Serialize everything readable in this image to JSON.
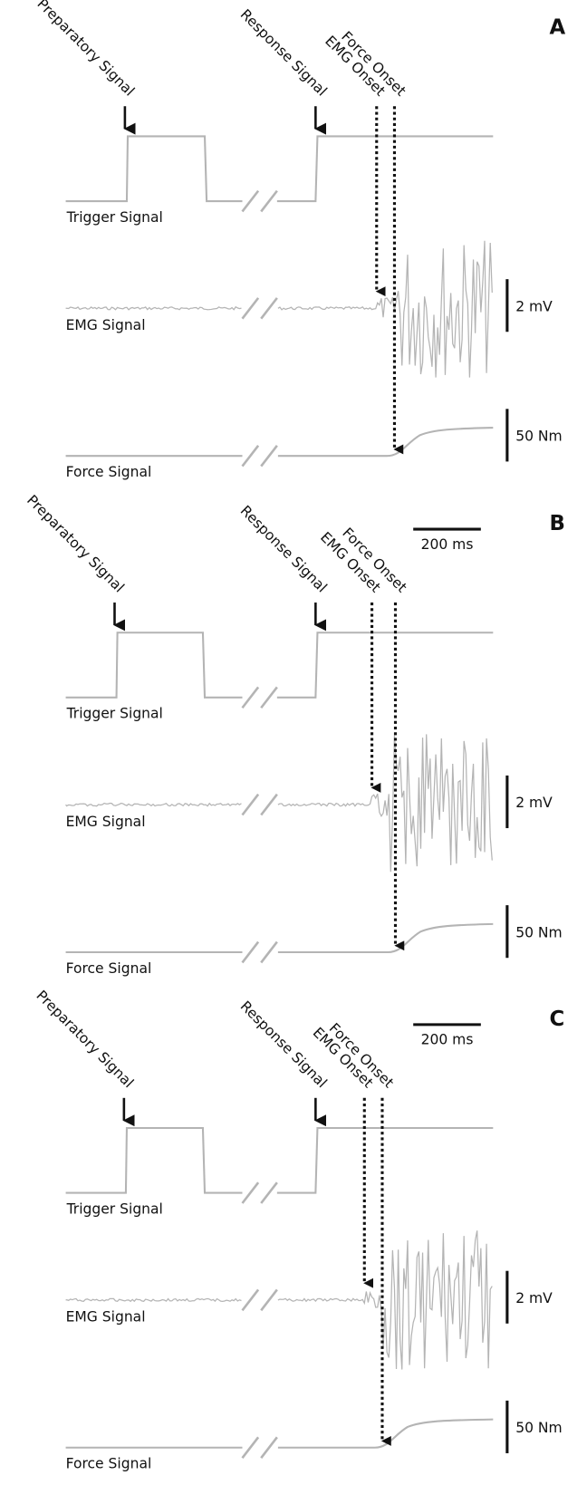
{
  "panels": [
    {
      "label": "A",
      "preparatory": "Preparatory Signal",
      "response": "Response Signal",
      "force_onset": "Force Onset",
      "emg_onset": "EMG Onset",
      "trigger": "Trigger Signal",
      "emg": "EMG Signal",
      "force": "Force Signal",
      "scale_emg": "2 mV",
      "scale_force": "50 Nm"
    },
    {
      "label": "B",
      "preparatory": "Preparatory Signal",
      "response": "Response Signal",
      "force_onset": "Force Onset",
      "emg_onset": "EMG Onset",
      "trigger": "Trigger Signal",
      "emg": "EMG Signal",
      "force": "Force Signal",
      "scale_emg": "2 mV",
      "scale_force": "50 Nm",
      "scale_time": "200 ms"
    },
    {
      "label": "C",
      "preparatory": "Preparatory Signal",
      "response": "Response Signal",
      "force_onset": "Force Onset",
      "emg_onset": "EMG Onset",
      "trigger": "Trigger Signal",
      "emg": "EMG Signal",
      "force": "Force Signal",
      "scale_emg": "2 mV",
      "scale_force": "50 Nm",
      "scale_time": "200 ms"
    }
  ]
}
